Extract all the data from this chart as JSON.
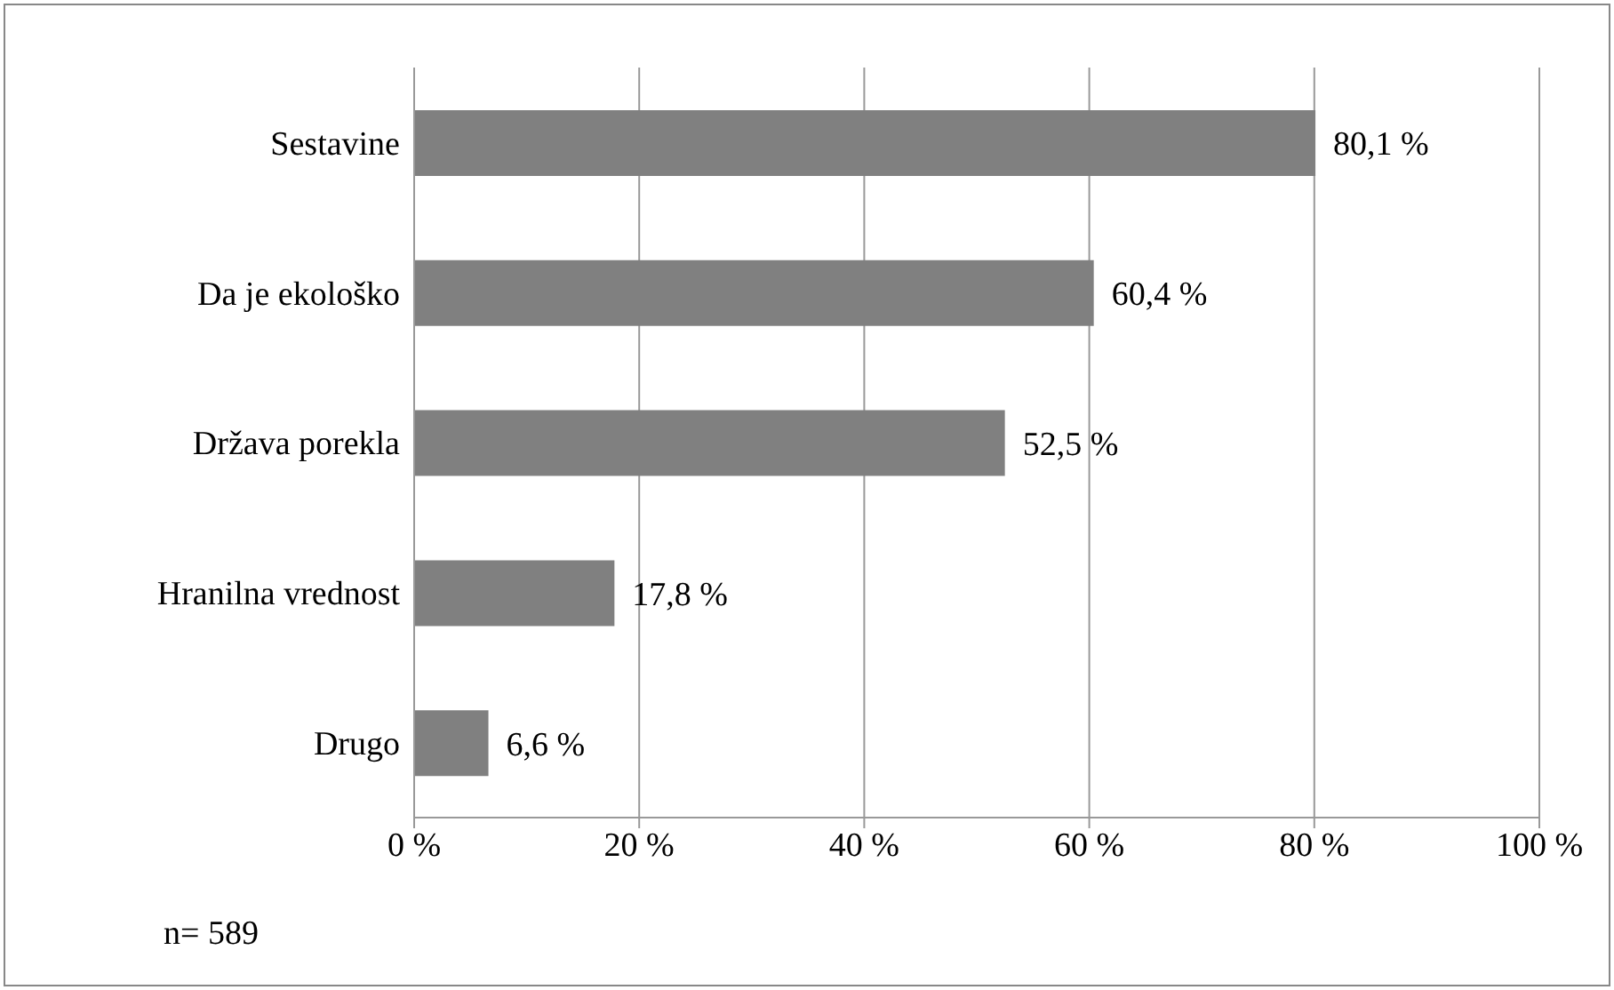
{
  "chart_data": {
    "type": "bar",
    "orientation": "horizontal",
    "categories": [
      "Sestavine",
      "Da je ekološko",
      "Država porekla",
      "Hranilna vrednost",
      "Drugo"
    ],
    "values": [
      80.1,
      60.4,
      52.5,
      17.8,
      6.6
    ],
    "value_labels": [
      "80,1 %",
      "60,4 %",
      "52,5 %",
      "17,8 %",
      "6,6 %"
    ],
    "color": "#808080",
    "xlim": [
      0,
      100
    ],
    "xticks": [
      {
        "value": 0,
        "label": "0 %"
      },
      {
        "value": 20,
        "label": "20 %"
      },
      {
        "value": 40,
        "label": "40 %"
      },
      {
        "value": 60,
        "label": "60 %"
      },
      {
        "value": 80,
        "label": "80 %"
      },
      {
        "value": 100,
        "label": "100 %"
      }
    ],
    "grid": "x",
    "annotations": [
      "n= 589"
    ]
  }
}
